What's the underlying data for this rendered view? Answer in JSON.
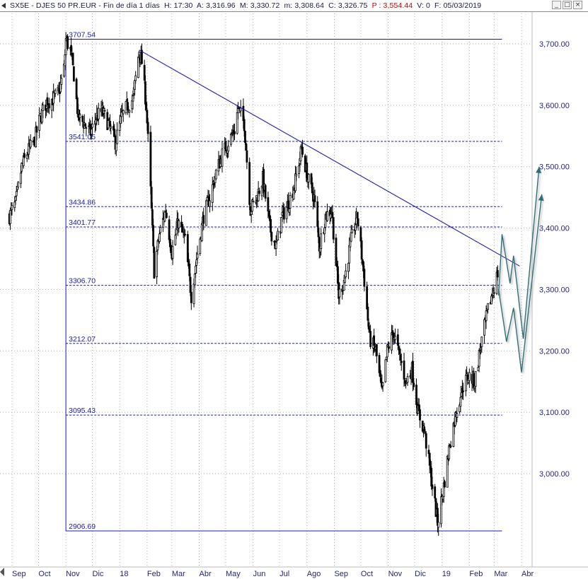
{
  "header": {
    "symbol": "SX5E",
    "name": "DJES 50 PR.EUR",
    "period": "Fin de día 1 días",
    "high_label": "H:",
    "high_value": "17:30",
    "open_label": "A:",
    "open_value": "3,316.96",
    "max_label": "M:",
    "max_value": "3,330.72",
    "min_label": "m:",
    "min_value": "3,308.64",
    "close_label": "C:",
    "close_value": "3,326.75",
    "p_label": "P :",
    "p_value": "3,554.44",
    "vol_label": "V:",
    "vol_value": "0",
    "date_label": "F:",
    "date_value": "05/03/2019"
  },
  "window_buttons": {
    "minimize": "_",
    "maximize": "□",
    "close": "×"
  },
  "colors": {
    "candles": "#000000",
    "levels": "#1a1ab4",
    "trendline": "#1a1ab4",
    "projection": "#2e6f7a",
    "axis_text": "#24247a",
    "grid": "#b0b0b0",
    "p_value": "#cc0000"
  },
  "chart_data": {
    "type": "candlestick",
    "y_unit": "index points",
    "ylim": [
      2885,
      3725
    ],
    "y_ticks": [
      "3,000.00",
      "3,100.00",
      "3,200.00",
      "3,300.00",
      "3,400.00",
      "3,500.00",
      "3,600.00",
      "3,700.00"
    ],
    "y_tick_values": [
      3000,
      3100,
      3200,
      3300,
      3400,
      3500,
      3600,
      3700
    ],
    "x_ticks": [
      "Sep",
      "Oct",
      "Nov",
      "Dic",
      "18",
      "Feb",
      "Mar",
      "Abr",
      "May",
      "Jun",
      "Jul",
      "Ago",
      "Sep",
      "Oct",
      "Nov",
      "Dic",
      "19",
      "Feb",
      "Mar",
      "Abr"
    ],
    "x_tick_dates": [
      "2017-09-01",
      "2017-10-01",
      "2017-11-01",
      "2017-12-01",
      "2018-01-01",
      "2018-02-01",
      "2018-03-01",
      "2018-04-01",
      "2018-05-01",
      "2018-06-01",
      "2018-07-01",
      "2018-08-01",
      "2018-09-01",
      "2018-10-01",
      "2018-11-01",
      "2018-12-01",
      "2019-01-01",
      "2019-02-01",
      "2019-03-01",
      "2019-04-01"
    ],
    "grid": true,
    "close_path": [
      [
        "2017-08-29",
        3420
      ],
      [
        "2017-09-05",
        3440
      ],
      [
        "2017-09-12",
        3500
      ],
      [
        "2017-09-19",
        3525
      ],
      [
        "2017-09-26",
        3540
      ],
      [
        "2017-10-03",
        3580
      ],
      [
        "2017-10-10",
        3605
      ],
      [
        "2017-10-17",
        3610
      ],
      [
        "2017-10-24",
        3620
      ],
      [
        "2017-10-30",
        3660
      ],
      [
        "2017-11-01",
        3707
      ],
      [
        "2017-11-06",
        3690
      ],
      [
        "2017-11-10",
        3650
      ],
      [
        "2017-11-15",
        3580
      ],
      [
        "2017-11-22",
        3570
      ],
      [
        "2017-11-29",
        3555
      ],
      [
        "2017-12-05",
        3580
      ],
      [
        "2017-12-12",
        3590
      ],
      [
        "2017-12-19",
        3570
      ],
      [
        "2017-12-27",
        3540
      ],
      [
        "2018-01-03",
        3580
      ],
      [
        "2018-01-10",
        3600
      ],
      [
        "2018-01-16",
        3610
      ],
      [
        "2018-01-23",
        3690
      ],
      [
        "2018-01-26",
        3670
      ],
      [
        "2018-01-31",
        3600
      ],
      [
        "2018-02-05",
        3460
      ],
      [
        "2018-02-09",
        3330
      ],
      [
        "2018-02-15",
        3390
      ],
      [
        "2018-02-22",
        3430
      ],
      [
        "2018-03-01",
        3360
      ],
      [
        "2018-03-08",
        3410
      ],
      [
        "2018-03-16",
        3380
      ],
      [
        "2018-03-23",
        3290
      ],
      [
        "2018-03-29",
        3350
      ],
      [
        "2018-04-06",
        3420
      ],
      [
        "2018-04-13",
        3450
      ],
      [
        "2018-04-20",
        3490
      ],
      [
        "2018-04-27",
        3520
      ],
      [
        "2018-05-04",
        3540
      ],
      [
        "2018-05-11",
        3560
      ],
      [
        "2018-05-15",
        3595
      ],
      [
        "2018-05-22",
        3570
      ],
      [
        "2018-05-29",
        3430
      ],
      [
        "2018-06-05",
        3450
      ],
      [
        "2018-06-12",
        3480
      ],
      [
        "2018-06-20",
        3400
      ],
      [
        "2018-06-27",
        3370
      ],
      [
        "2018-07-04",
        3420
      ],
      [
        "2018-07-11",
        3440
      ],
      [
        "2018-07-18",
        3470
      ],
      [
        "2018-07-26",
        3530
      ],
      [
        "2018-08-02",
        3480
      ],
      [
        "2018-08-09",
        3450
      ],
      [
        "2018-08-15",
        3370
      ],
      [
        "2018-08-22",
        3420
      ],
      [
        "2018-08-29",
        3430
      ],
      [
        "2018-09-06",
        3290
      ],
      [
        "2018-09-13",
        3320
      ],
      [
        "2018-09-20",
        3380
      ],
      [
        "2018-09-27",
        3420
      ],
      [
        "2018-10-04",
        3330
      ],
      [
        "2018-10-11",
        3220
      ],
      [
        "2018-10-18",
        3200
      ],
      [
        "2018-10-25",
        3130
      ],
      [
        "2018-10-31",
        3200
      ],
      [
        "2018-11-07",
        3230
      ],
      [
        "2018-11-14",
        3190
      ],
      [
        "2018-11-21",
        3150
      ],
      [
        "2018-11-28",
        3170
      ],
      [
        "2018-12-05",
        3100
      ],
      [
        "2018-12-12",
        3070
      ],
      [
        "2018-12-18",
        3010
      ],
      [
        "2018-12-27",
        2920
      ],
      [
        "2019-01-03",
        2980
      ],
      [
        "2019-01-10",
        3050
      ],
      [
        "2019-01-17",
        3100
      ],
      [
        "2019-01-24",
        3140
      ],
      [
        "2019-01-31",
        3160
      ],
      [
        "2019-02-07",
        3150
      ],
      [
        "2019-02-14",
        3210
      ],
      [
        "2019-02-21",
        3260
      ],
      [
        "2019-02-28",
        3300
      ],
      [
        "2019-03-05",
        3326
      ]
    ],
    "levels": [
      {
        "label": "3707.54",
        "value": 3707.54,
        "style": "solid"
      },
      {
        "label": "3541.05",
        "value": 3541.05,
        "style": "dashed"
      },
      {
        "label": "3434.86",
        "value": 3434.86,
        "style": "dashed"
      },
      {
        "label": "3401.77",
        "value": 3401.77,
        "style": "dashed"
      },
      {
        "label": "3306.70",
        "value": 3306.7,
        "style": "dashed"
      },
      {
        "label": "3212.07",
        "value": 3212.07,
        "style": "dashed"
      },
      {
        "label": "3095.43",
        "value": 3095.43,
        "style": "dashed"
      },
      {
        "label": "2906.69",
        "value": 2906.69,
        "style": "solid"
      }
    ],
    "level_start_date": "2017-11-01",
    "level_end_date": "2019-03-10",
    "trendline": {
      "from": [
        "2018-01-23",
        3690
      ],
      "to": [
        "2019-03-30",
        3338
      ]
    },
    "projections": [
      [
        [
          "2019-03-06",
          3290
        ],
        [
          "2019-03-10",
          3390
        ],
        [
          "2019-03-19",
          3310
        ],
        [
          "2019-03-23",
          3355
        ],
        [
          "2019-04-03",
          3220
        ],
        [
          "2019-04-21",
          3500
        ]
      ],
      [
        [
          "2019-03-06",
          3300
        ],
        [
          "2019-03-15",
          3215
        ],
        [
          "2019-03-23",
          3270
        ],
        [
          "2019-04-01",
          3165
        ],
        [
          "2019-04-24",
          3455
        ]
      ]
    ]
  }
}
